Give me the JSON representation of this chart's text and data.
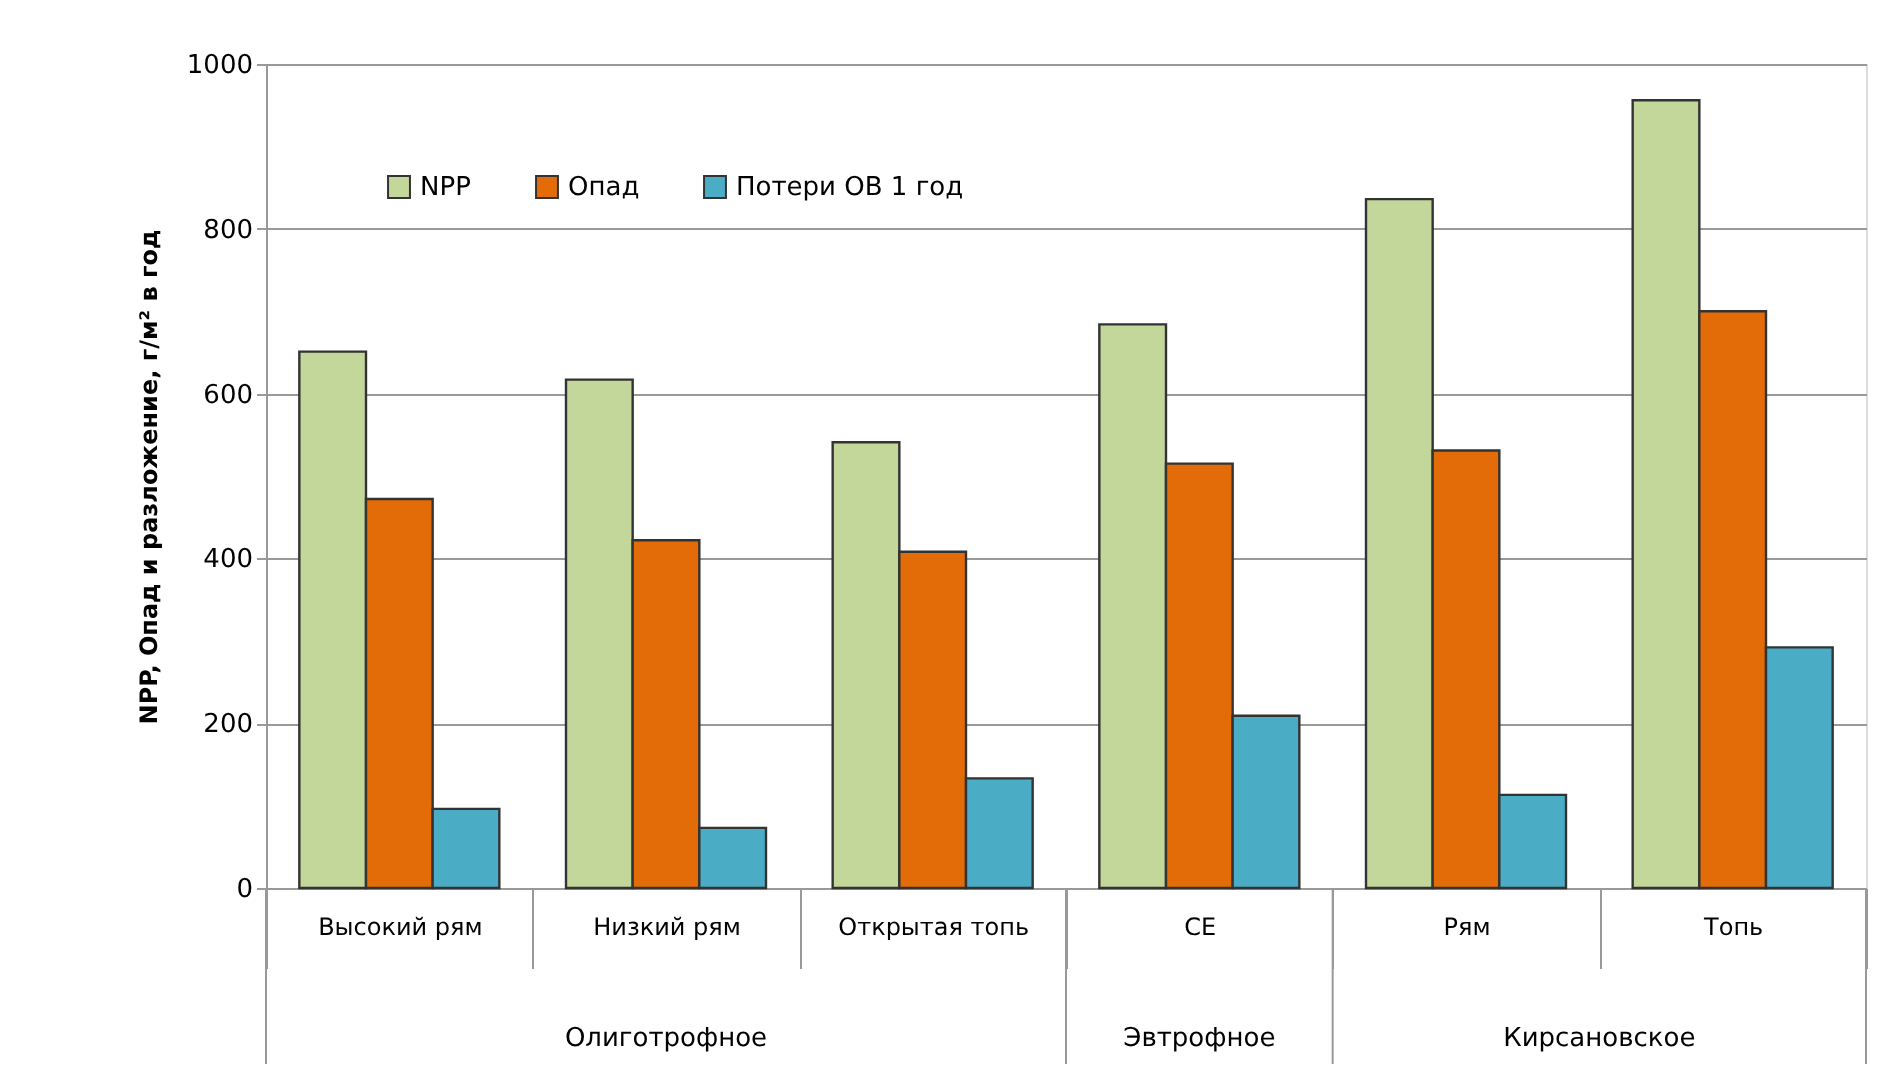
{
  "chart_data": {
    "type": "bar",
    "ylabel": "NPP, Опад и разложение, г/м² в год",
    "categories": [
      "Высокий рям",
      "Низкий рям",
      "Открытая топь",
      "CE",
      "Рям",
      "Топь"
    ],
    "series": [
      {
        "name": "NPP",
        "color": "#c4d79b",
        "values": [
          651,
          617,
          541,
          684,
          836,
          956
        ]
      },
      {
        "name": "Опад",
        "color": "#e36c09",
        "values": [
          472,
          422,
          408,
          515,
          531,
          700
        ]
      },
      {
        "name": "Потери ОВ 1 год",
        "color": "#4bacc6",
        "values": [
          96,
          73,
          133,
          209,
          113,
          292
        ]
      }
    ],
    "annotations": [
      "Олиготрофное",
      "Эвтрофное",
      "Кирсановское"
    ],
    "ylim": [
      0,
      1000
    ],
    "yticks": [
      0,
      200,
      400,
      600,
      800,
      1000
    ],
    "grid": "y",
    "legend": "top"
  }
}
